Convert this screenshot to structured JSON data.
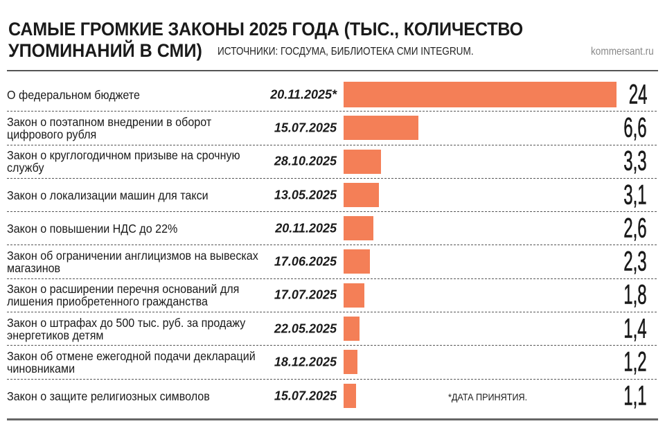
{
  "header": {
    "title_line1": "САМЫЕ ГРОМКИЕ ЗАКОНЫ 2025 ГОДА (ТЫС., КОЛИЧЕСТВО",
    "title_line2": "УПОМИНАНИЙ В СМИ)",
    "source": "ИСТОЧНИКИ: ГОСДУМА, БИБЛИОТЕКА СМИ INTEGRUM.",
    "brand": "kommersant.ru"
  },
  "footnote": "*ДАТА ПРИНЯТИЯ.",
  "chart_data": {
    "type": "bar",
    "orientation": "horizontal",
    "title": "САМЫЕ ГРОМКИЕ ЗАКОНЫ 2025 ГОДА (ТЫС., КОЛИЧЕСТВО УПОМИНАНИЙ В СМИ)",
    "bar_color": "#f47f57",
    "categories": [
      "О федеральном бюджете",
      "Закон о поэтапном внедрении в оборот цифрового рубля",
      "Закон о круглогодичном призыве на срочную службу",
      "Закон о локализации машин для такси",
      "Закон о повышении НДС до 22%",
      "Закон об ограничении англицизмов на вывесках магазинов",
      "Закон о расширении перечня оснований для лишения приобретенного гражданства",
      "Закон о штрафах до 500 тыс. руб. за продажу энергетиков детям",
      "Закон об отмене ежегодной подачи деклараций чиновниками",
      "Закон о защите религиозных символов"
    ],
    "dates": [
      "20.11.2025*",
      "15.07.2025",
      "28.10.2025",
      "13.05.2025",
      "20.11.2025",
      "17.06.2025",
      "17.07.2025",
      "22.05.2025",
      "18.12.2025",
      "15.07.2025"
    ],
    "values": [
      24,
      6.6,
      3.3,
      3.1,
      2.6,
      2.3,
      1.8,
      1.4,
      1.2,
      1.1
    ],
    "value_labels": [
      "24",
      "6,6",
      "3,3",
      "3,1",
      "2,6",
      "2,3",
      "1,8",
      "1,4",
      "1,2",
      "1,1"
    ],
    "xlim": [
      0,
      24
    ]
  }
}
